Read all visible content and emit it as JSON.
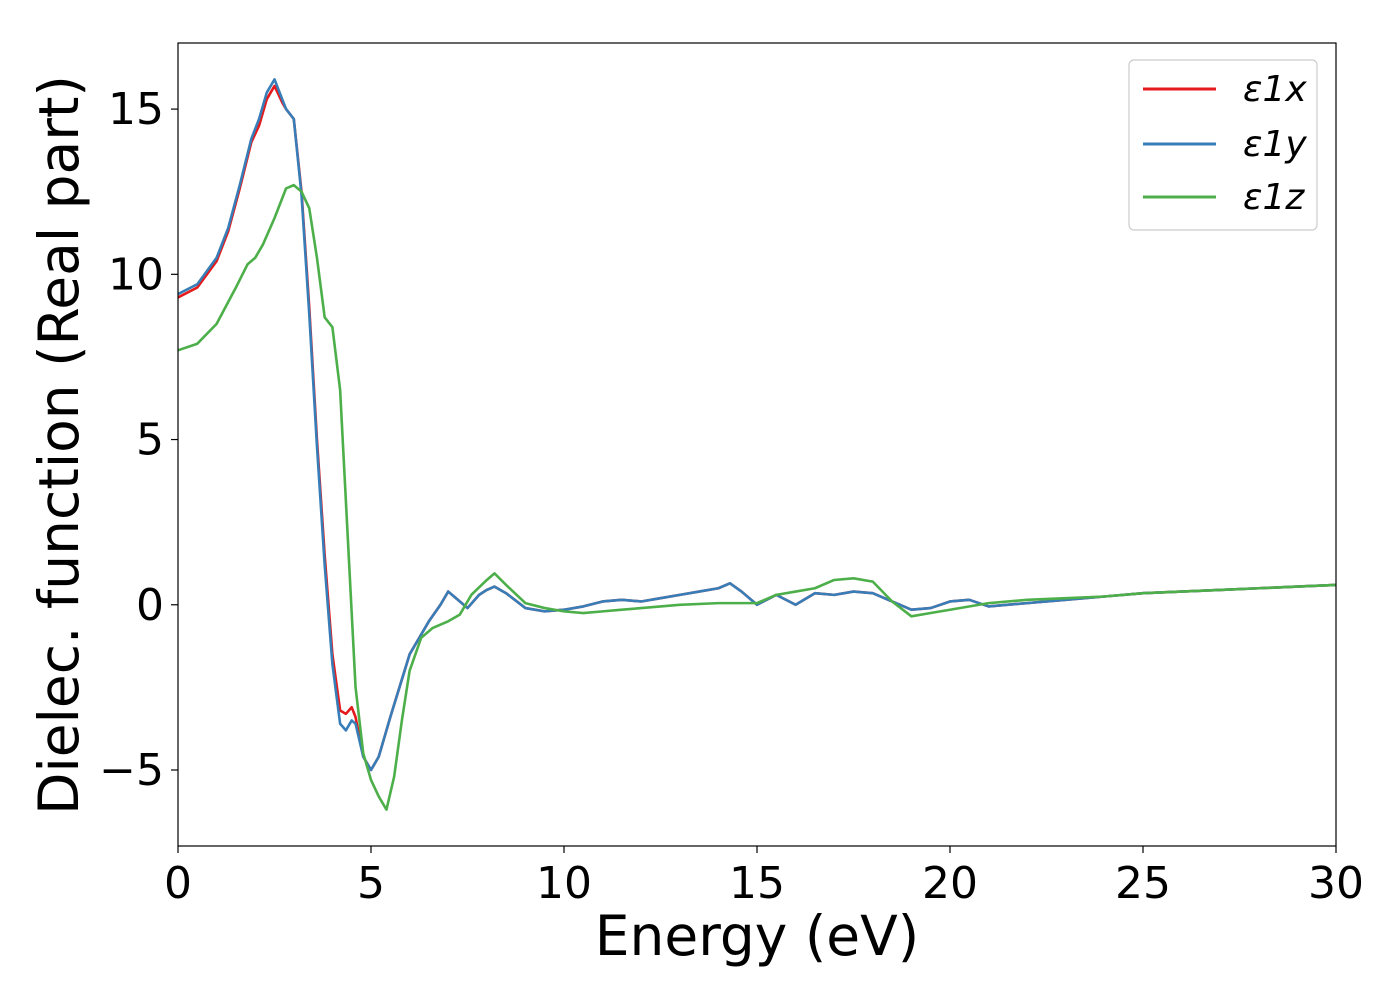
{
  "chart_data": {
    "type": "line",
    "title": "",
    "xlabel": "Energy (eV)",
    "ylabel": "Dielec. function (Real part)",
    "xlim": [
      0,
      30
    ],
    "ylim": [
      -7.3,
      17
    ],
    "xticks": [
      0,
      5,
      10,
      15,
      20,
      25,
      30
    ],
    "xtick_labels": [
      "0",
      "5",
      "10",
      "15",
      "20",
      "25",
      "30"
    ],
    "yticks": [
      -5,
      0,
      5,
      10,
      15
    ],
    "ytick_labels": [
      "−5",
      "0",
      "5",
      "10",
      "15"
    ],
    "grid": false,
    "legend_position": "top-right",
    "series": [
      {
        "name": "ε1x",
        "color": "#e41a1c",
        "x": [
          0,
          0.5,
          1.0,
          1.3,
          1.6,
          1.9,
          2.1,
          2.3,
          2.5,
          2.7,
          2.8,
          3.0,
          3.2,
          3.4,
          3.6,
          3.8,
          4.0,
          4.2,
          4.35,
          4.5,
          4.6,
          4.8,
          5.0,
          5.2,
          5.5,
          6.0,
          6.5,
          6.8,
          7.0,
          7.2,
          7.5,
          7.8,
          8.0,
          8.2,
          8.5,
          9.0,
          9.5,
          10,
          10.5,
          11,
          11.5,
          12,
          12.5,
          13,
          13.5,
          14,
          14.3,
          14.6,
          15,
          15.5,
          16,
          16.5,
          17,
          17.5,
          18,
          18.5,
          19,
          19.5,
          20,
          20.5,
          21,
          22,
          23,
          24,
          25,
          26,
          27,
          28,
          29,
          30
        ],
        "y": [
          9.3,
          9.6,
          10.4,
          11.3,
          12.6,
          14.0,
          14.5,
          15.3,
          15.7,
          15.2,
          15.0,
          14.7,
          12.5,
          9.0,
          5.0,
          1.5,
          -1.5,
          -3.2,
          -3.3,
          -3.1,
          -3.4,
          -4.6,
          -5.0,
          -4.6,
          -3.4,
          -1.5,
          -0.5,
          0.0,
          0.4,
          0.2,
          -0.1,
          0.3,
          0.45,
          0.55,
          0.35,
          -0.1,
          -0.2,
          -0.15,
          -0.05,
          0.1,
          0.15,
          0.1,
          0.2,
          0.3,
          0.4,
          0.5,
          0.65,
          0.4,
          0.0,
          0.3,
          0.0,
          0.35,
          0.3,
          0.4,
          0.35,
          0.1,
          -0.15,
          -0.1,
          0.1,
          0.15,
          -0.05,
          0.05,
          0.15,
          0.25,
          0.35,
          0.4,
          0.45,
          0.5,
          0.55,
          0.6
        ]
      },
      {
        "name": "ε1y",
        "color": "#377eb8",
        "x": [
          0,
          0.5,
          1.0,
          1.3,
          1.6,
          1.9,
          2.1,
          2.3,
          2.5,
          2.7,
          2.8,
          3.0,
          3.2,
          3.4,
          3.6,
          3.8,
          4.0,
          4.2,
          4.35,
          4.5,
          4.6,
          4.8,
          5.0,
          5.2,
          5.5,
          6.0,
          6.5,
          6.8,
          7.0,
          7.2,
          7.5,
          7.8,
          8.0,
          8.2,
          8.5,
          9.0,
          9.5,
          10,
          10.5,
          11,
          11.5,
          12,
          12.5,
          13,
          13.5,
          14,
          14.3,
          14.6,
          15,
          15.5,
          16,
          16.5,
          17,
          17.5,
          18,
          18.5,
          19,
          19.5,
          20,
          20.5,
          21,
          22,
          23,
          24,
          25,
          26,
          27,
          28,
          29,
          30
        ],
        "y": [
          9.4,
          9.7,
          10.5,
          11.4,
          12.7,
          14.1,
          14.7,
          15.5,
          15.9,
          15.3,
          15.0,
          14.7,
          12.4,
          8.8,
          4.8,
          1.2,
          -1.8,
          -3.6,
          -3.8,
          -3.5,
          -3.6,
          -4.6,
          -5.0,
          -4.6,
          -3.4,
          -1.5,
          -0.5,
          0.0,
          0.4,
          0.2,
          -0.1,
          0.3,
          0.45,
          0.55,
          0.35,
          -0.1,
          -0.2,
          -0.15,
          -0.05,
          0.1,
          0.15,
          0.1,
          0.2,
          0.3,
          0.4,
          0.5,
          0.65,
          0.4,
          0.0,
          0.3,
          0.0,
          0.35,
          0.3,
          0.4,
          0.35,
          0.1,
          -0.15,
          -0.1,
          0.1,
          0.15,
          -0.05,
          0.05,
          0.15,
          0.25,
          0.35,
          0.4,
          0.45,
          0.5,
          0.55,
          0.6
        ]
      },
      {
        "name": "ε1z",
        "color": "#4daf4a",
        "x": [
          0,
          0.5,
          1.0,
          1.5,
          1.8,
          2.0,
          2.2,
          2.5,
          2.8,
          3.0,
          3.2,
          3.4,
          3.6,
          3.8,
          4.0,
          4.2,
          4.4,
          4.6,
          4.8,
          5.0,
          5.2,
          5.4,
          5.6,
          5.8,
          6.0,
          6.3,
          6.6,
          7.0,
          7.3,
          7.6,
          8.0,
          8.2,
          8.5,
          9.0,
          9.5,
          10,
          10.5,
          11,
          11.5,
          12,
          12.5,
          13,
          14,
          15,
          15.5,
          16,
          16.5,
          17,
          17.5,
          18,
          18.5,
          19,
          19.5,
          20,
          21,
          22,
          23,
          24,
          25,
          26,
          27,
          28,
          29,
          30
        ],
        "y": [
          7.7,
          7.9,
          8.5,
          9.6,
          10.3,
          10.5,
          10.9,
          11.7,
          12.6,
          12.7,
          12.5,
          12.0,
          10.5,
          8.7,
          8.4,
          6.5,
          2.0,
          -2.5,
          -4.5,
          -5.3,
          -5.8,
          -6.2,
          -5.2,
          -3.5,
          -2.0,
          -1.0,
          -0.7,
          -0.5,
          -0.3,
          0.3,
          0.75,
          0.95,
          0.6,
          0.05,
          -0.1,
          -0.2,
          -0.25,
          -0.2,
          -0.15,
          -0.1,
          -0.05,
          0.0,
          0.05,
          0.05,
          0.3,
          0.4,
          0.5,
          0.75,
          0.8,
          0.7,
          0.1,
          -0.35,
          -0.25,
          -0.15,
          0.05,
          0.15,
          0.2,
          0.25,
          0.35,
          0.4,
          0.45,
          0.5,
          0.55,
          0.6
        ]
      }
    ]
  }
}
